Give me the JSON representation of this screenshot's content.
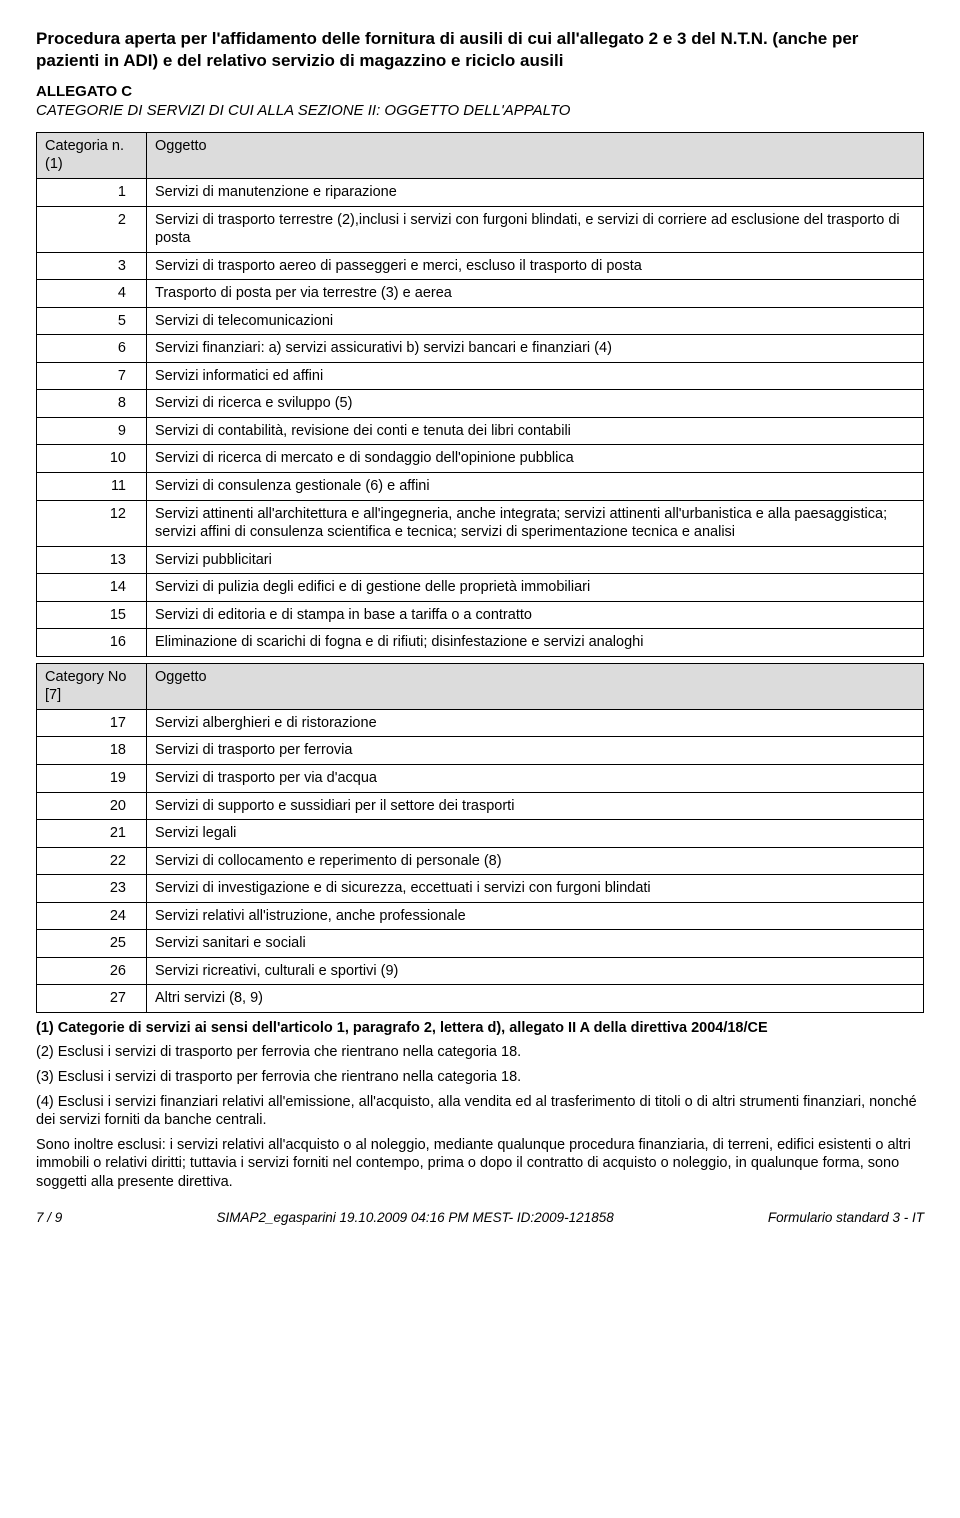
{
  "doc_title": "Procedura aperta per l'affidamento delle fornitura di ausili di cui all'allegato 2 e 3 del N.T.N. (anche per pazienti in ADI) e del relativo servizio di magazzino e riciclo ausili",
  "allegato_label": "ALLEGATO C",
  "allegato_sub": "CATEGORIE DI SERVIZI DI CUI ALLA SEZIONE II: OGGETTO DELL'APPALTO",
  "table1": {
    "header_left_top": "Categoria n.",
    "header_left_bottom": "(1)",
    "header_right": "Oggetto",
    "rows": [
      {
        "n": "1",
        "t": "Servizi di manutenzione e riparazione"
      },
      {
        "n": "2",
        "t": "Servizi di trasporto terrestre (2),inclusi i servizi con furgoni blindati, e servizi di corriere ad esclusione del trasporto di posta"
      },
      {
        "n": "3",
        "t": "Servizi di trasporto aereo di passeggeri e merci, escluso il trasporto di posta"
      },
      {
        "n": "4",
        "t": "Trasporto di posta per via terrestre (3) e aerea"
      },
      {
        "n": "5",
        "t": "Servizi di telecomunicazioni"
      },
      {
        "n": "6",
        "t": "Servizi finanziari: a) servizi assicurativi b) servizi bancari e finanziari (4)"
      },
      {
        "n": "7",
        "t": "Servizi informatici ed affini"
      },
      {
        "n": "8",
        "t": "Servizi di ricerca e sviluppo (5)"
      },
      {
        "n": "9",
        "t": "Servizi di contabilità, revisione dei conti e tenuta dei libri contabili"
      },
      {
        "n": "10",
        "t": "Servizi di ricerca di mercato e di sondaggio dell'opinione pubblica"
      },
      {
        "n": "11",
        "t": "Servizi di consulenza gestionale (6) e affini"
      },
      {
        "n": "12",
        "t": "Servizi attinenti all'architettura e all'ingegneria, anche integrata; servizi attinenti all'urbanistica e alla paesaggistica; servizi affini di consulenza scientifica e tecnica; servizi di sperimentazione tecnica e analisi"
      },
      {
        "n": "13",
        "t": "Servizi pubblicitari"
      },
      {
        "n": "14",
        "t": "Servizi di pulizia degli edifici e di gestione delle proprietà immobiliari"
      },
      {
        "n": "15",
        "t": "Servizi di editoria e di stampa in base a tariffa o a contratto"
      },
      {
        "n": "16",
        "t": "Eliminazione di scarichi di fogna e di rifiuti; disinfestazione e servizi analoghi"
      }
    ]
  },
  "table2": {
    "header_left_top": "Category No",
    "header_left_bottom": "[7]",
    "header_right": "Oggetto",
    "rows": [
      {
        "n": "17",
        "t": "Servizi alberghieri e di ristorazione"
      },
      {
        "n": "18",
        "t": "Servizi di trasporto per ferrovia"
      },
      {
        "n": "19",
        "t": "Servizi di trasporto per via d'acqua"
      },
      {
        "n": "20",
        "t": "Servizi di supporto e sussidiari per il settore dei trasporti"
      },
      {
        "n": "21",
        "t": "Servizi legali"
      },
      {
        "n": "22",
        "t": "Servizi di collocamento e reperimento di personale (8)"
      },
      {
        "n": "23",
        "t": "Servizi di investigazione e di sicurezza, eccettuati i servizi con furgoni blindati"
      },
      {
        "n": "24",
        "t": "Servizi relativi all'istruzione, anche professionale"
      },
      {
        "n": "25",
        "t": "Servizi sanitari e sociali"
      },
      {
        "n": "26",
        "t": "Servizi ricreativi, culturali e sportivi (9)"
      },
      {
        "n": "27",
        "t": "Altri servizi (8, 9)"
      }
    ]
  },
  "notes": {
    "n1": "(1) Categorie di servizi ai sensi dell'articolo 1, paragrafo 2, lettera d), allegato II A della direttiva 2004/18/CE",
    "n2": "(2) Esclusi i servizi di trasporto per ferrovia che rientrano nella categoria 18.",
    "n3": "(3) Esclusi i servizi di trasporto per ferrovia che rientrano nella categoria 18.",
    "n4": "(4) Esclusi i servizi finanziari relativi all'emissione, all'acquisto, alla vendita ed al trasferimento di titoli o di altri strumenti finanziari, nonché dei servizi forniti da banche centrali.",
    "n5": "Sono inoltre esclusi: i servizi relativi all'acquisto o al noleggio, mediante qualunque procedura finanziaria, di terreni, edifici esistenti o altri immobili o relativi diritti; tuttavia i servizi forniti nel contempo, prima o dopo il contratto di acquisto o noleggio, in qualunque forma, sono soggetti alla presente direttiva."
  },
  "footer": {
    "left": "7 / 9",
    "mid": "SIMAP2_egasparini 19.10.2009 04:16 PM MEST- ID:2009-121858",
    "right": "Formulario standard 3 - IT"
  }
}
